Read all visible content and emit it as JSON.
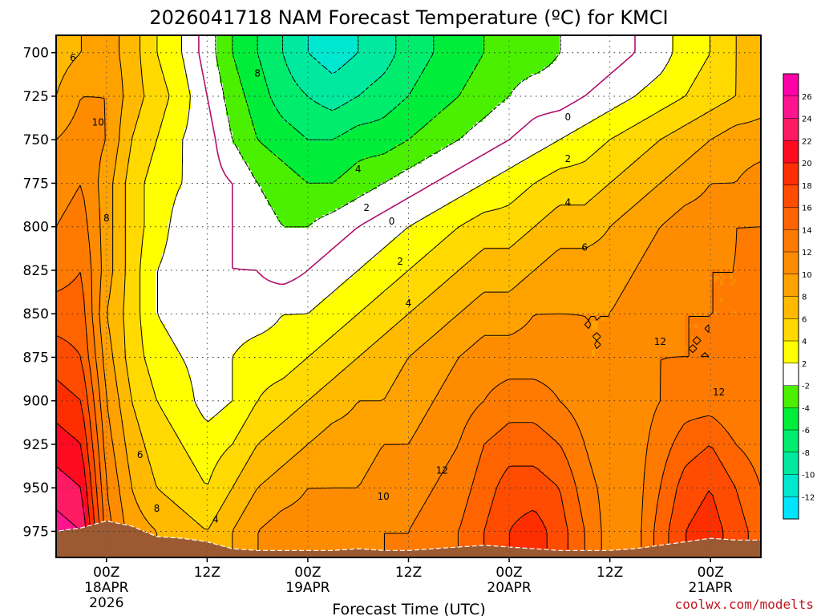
{
  "chart_data": {
    "type": "heatmap",
    "title": "2026041718 NAM Forecast Temperature (ºC) for KMCI",
    "xlabel": "Forecast Time (UTC)",
    "credit": "coolwx.com/modelts",
    "y_ticks": [
      "700",
      "725",
      "750",
      "775",
      "800",
      "825",
      "850",
      "875",
      "900",
      "925",
      "950",
      "975"
    ],
    "y_tick_values": [
      700,
      725,
      750,
      775,
      800,
      825,
      850,
      875,
      900,
      925,
      950,
      975
    ],
    "x_ticks": [
      {
        "line1": "00Z",
        "line2": "18APR",
        "line3": "2026",
        "hour": 6
      },
      {
        "line1": "12Z",
        "line2": "",
        "line3": "",
        "hour": 18
      },
      {
        "line1": "00Z",
        "line2": "19APR",
        "line3": "",
        "hour": 30
      },
      {
        "line1": "12Z",
        "line2": "",
        "line3": "",
        "hour": 42
      },
      {
        "line1": "00Z",
        "line2": "20APR",
        "line3": "",
        "hour": 54
      },
      {
        "line1": "12Z",
        "line2": "",
        "line3": "",
        "hour": 66
      },
      {
        "line1": "00Z",
        "line2": "21APR",
        "line3": "",
        "hour": 78
      }
    ],
    "xlim_hours": [
      0,
      84
    ],
    "ylim_hPa": [
      690,
      990
    ],
    "grid": true,
    "colorbar": {
      "levels": [
        -14,
        -12,
        -10,
        -8,
        -6,
        -4,
        -2,
        2,
        4,
        6,
        8,
        10,
        12,
        14,
        16,
        18,
        20,
        22,
        24,
        26,
        28
      ],
      "labels": [
        "-12",
        "-10",
        "-8",
        "-6",
        "-4",
        "-2",
        "2",
        "4",
        "6",
        "8",
        "10",
        "12",
        "14",
        "16",
        "18",
        "20",
        "22",
        "24",
        "26"
      ],
      "colors": [
        "#00e5ff",
        "#00e7cf",
        "#00e99f",
        "#00ec6c",
        "#00ee3a",
        "#4bf000",
        "#ffffff",
        "#ffff00",
        "#ffd900",
        "#ffba00",
        "#ffa200",
        "#ff8c00",
        "#ff7a00",
        "#ff6400",
        "#ff4c00",
        "#ff2e00",
        "#ff0a1e",
        "#ff1a64",
        "#ff1490",
        "#ff00a8"
      ]
    },
    "x_hours": [
      0,
      3,
      6,
      9,
      12,
      15,
      18,
      21,
      24,
      27,
      30,
      33,
      36,
      39,
      42,
      45,
      48,
      51,
      54,
      57,
      60,
      63,
      66,
      69,
      72,
      75,
      78,
      81,
      84
    ],
    "y_levels": [
      700,
      725,
      750,
      775,
      800,
      825,
      850,
      875,
      900,
      925,
      950,
      975
    ],
    "values": [
      [
        7,
        8,
        9,
        7,
        4,
        2,
        -1,
        -4,
        -6,
        -8,
        -10,
        -11,
        -10,
        -9,
        -7,
        -6,
        -5,
        -4,
        -3,
        -3,
        -2,
        -2,
        -1,
        0,
        1,
        3,
        4,
        6,
        7
      ],
      [
        8,
        10,
        10,
        7,
        5,
        3,
        0,
        -3,
        -5,
        -7,
        -8,
        -9,
        -8,
        -7,
        -6,
        -5,
        -4,
        -3,
        -2,
        -1,
        -1,
        0,
        1,
        2,
        3,
        4,
        5,
        6,
        7
      ],
      [
        10,
        11,
        10,
        6,
        4,
        2,
        1,
        -2,
        -4,
        -5,
        -6,
        -6,
        -5,
        -5,
        -4,
        -3,
        -2,
        -1,
        0,
        1,
        2,
        3,
        4,
        5,
        6,
        7,
        8,
        9,
        9
      ],
      [
        11,
        12,
        9,
        5,
        3,
        2,
        1,
        0,
        -2,
        -3,
        -4,
        -4,
        -3,
        -2,
        -1,
        0,
        1,
        2,
        3,
        4,
        5,
        5,
        6,
        7,
        8,
        9,
        10,
        10,
        11
      ],
      [
        12,
        13,
        9,
        5,
        3,
        1,
        1,
        0,
        -1,
        -2,
        -2,
        -1,
        0,
        1,
        2,
        3,
        4,
        5,
        5,
        6,
        7,
        7,
        8,
        9,
        10,
        11,
        11,
        12,
        12
      ],
      [
        13,
        14,
        9,
        5,
        2,
        1,
        0,
        0,
        0,
        -1,
        0,
        1,
        2,
        3,
        4,
        5,
        6,
        7,
        7,
        8,
        9,
        9,
        9,
        10,
        11,
        11,
        12,
        12,
        13
      ],
      [
        15,
        15,
        8,
        5,
        2,
        1,
        1,
        1,
        1,
        2,
        2,
        3,
        4,
        5,
        6,
        7,
        8,
        9,
        9,
        10,
        10,
        10,
        10,
        11,
        11,
        12,
        12,
        12,
        13
      ],
      [
        17,
        16,
        9,
        5,
        3,
        2,
        1,
        2,
        3,
        3,
        4,
        5,
        6,
        7,
        8,
        9,
        10,
        11,
        11,
        11,
        11,
        10,
        10,
        11,
        12,
        12,
        12,
        13,
        13
      ],
      [
        19,
        18,
        10,
        6,
        4,
        3,
        1,
        2,
        4,
        5,
        6,
        7,
        8,
        8,
        9,
        10,
        11,
        12,
        13,
        13,
        12,
        11,
        10,
        11,
        12,
        13,
        13,
        12,
        13
      ],
      [
        21,
        20,
        11,
        7,
        5,
        4,
        3,
        4,
        6,
        7,
        8,
        9,
        9,
        10,
        10,
        11,
        12,
        14,
        15,
        15,
        14,
        12,
        10,
        11,
        13,
        15,
        16,
        14,
        13
      ],
      [
        23,
        22,
        12,
        8,
        6,
        5,
        4,
        6,
        8,
        9,
        10,
        10,
        10,
        11,
        11,
        12,
        13,
        15,
        17,
        17,
        16,
        13,
        11,
        11,
        14,
        17,
        18,
        16,
        14
      ],
      [
        25,
        24,
        13,
        9,
        8,
        7,
        6,
        8,
        10,
        11,
        11,
        11,
        11,
        12,
        12,
        13,
        14,
        16,
        18,
        19,
        17,
        14,
        11,
        11,
        15,
        18,
        19,
        17,
        15
      ]
    ],
    "contour_labels": [
      {
        "text": "6",
        "hour": 2,
        "p": 703
      },
      {
        "text": "10",
        "hour": 5,
        "p": 740
      },
      {
        "text": "8",
        "hour": 6,
        "p": 795
      },
      {
        "text": "6",
        "hour": 10,
        "p": 931
      },
      {
        "text": "8",
        "hour": 12,
        "p": 962
      },
      {
        "text": "4",
        "hour": 19,
        "p": 968
      },
      {
        "text": "8",
        "hour": 24,
        "p": 712
      },
      {
        "text": "4",
        "hour": 36,
        "p": 767
      },
      {
        "text": "2",
        "hour": 37,
        "p": 789
      },
      {
        "text": "0",
        "hour": 40,
        "p": 797
      },
      {
        "text": "2",
        "hour": 41,
        "p": 820
      },
      {
        "text": "4",
        "hour": 42,
        "p": 844
      },
      {
        "text": "10",
        "hour": 39,
        "p": 955
      },
      {
        "text": "12",
        "hour": 46,
        "p": 940
      },
      {
        "text": "0",
        "hour": 61,
        "p": 737
      },
      {
        "text": "2",
        "hour": 61,
        "p": 761
      },
      {
        "text": "4",
        "hour": 61,
        "p": 786
      },
      {
        "text": "6",
        "hour": 63,
        "p": 812
      },
      {
        "text": "12",
        "hour": 72,
        "p": 866
      },
      {
        "text": "12",
        "hour": 79,
        "p": 895
      }
    ]
  }
}
